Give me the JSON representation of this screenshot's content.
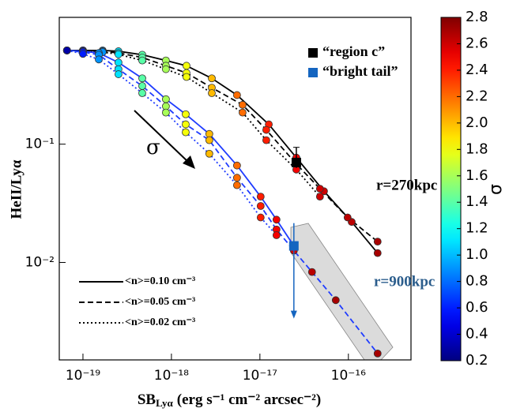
{
  "chart_data": {
    "type": "line",
    "xlog": true,
    "ylog": true,
    "xlabel": {
      "text": "SB",
      "sub": "Lyα",
      "unit": "(erg s⁻¹ cm⁻² arcsec⁻²)"
    },
    "ylabel": "HeII/Lyα",
    "xlim": [
      5.4e-20,
      5.1e-16
    ],
    "ylim": [
      0.0015,
      1.18
    ],
    "xticks": [
      {
        "value": 1e-19,
        "label": "10⁻¹⁹"
      },
      {
        "value": 1e-18,
        "label": "10⁻¹⁸"
      },
      {
        "value": 1e-17,
        "label": "10⁻¹⁷"
      },
      {
        "value": 1e-16,
        "label": "10⁻¹⁶"
      }
    ],
    "yticks": [
      {
        "value": 0.1,
        "label": "10⁻¹"
      },
      {
        "value": 0.01,
        "label": "10⁻²"
      }
    ],
    "annotations": {
      "r_outer": "r=270kpc",
      "r_inner": "r=900kpc",
      "arrow_label": "σ"
    },
    "series": [
      {
        "name": "<n>=0.10 cm⁻³",
        "color": "#000000",
        "dash": "solid",
        "x": [
          6.6e-20,
          1e-19,
          1.67e-19,
          2.52e-19,
          4.68e-19,
          8.66e-19,
          1.48e-18,
          2.86e-18,
          5.51e-18,
          1.26e-17,
          2.58e-17,
          5.3e-17,
          1.09e-16,
          2.14e-16
        ],
        "values": [
          0.62,
          0.62,
          0.62,
          0.61,
          0.57,
          0.51,
          0.46,
          0.36,
          0.26,
          0.147,
          0.077,
          0.04,
          0.022,
          0.012
        ],
        "sigma": [
          0.3,
          0.6,
          0.9,
          1.1,
          1.4,
          1.6,
          1.8,
          2.0,
          2.2,
          2.4,
          2.5,
          2.6,
          2.65,
          2.7
        ]
      },
      {
        "name": "<n>=0.05 cm⁻³",
        "color": "#000000",
        "dash": "dashed",
        "x": [
          6.6e-20,
          1e-19,
          1.67e-19,
          2.52e-19,
          4.68e-19,
          8.66e-19,
          1.48e-18,
          2.86e-18,
          6.37e-18,
          1.18e-17,
          2.58e-17,
          4.77e-17,
          9.8e-17,
          2.14e-16
        ],
        "values": [
          0.62,
          0.62,
          0.61,
          0.59,
          0.54,
          0.46,
          0.4,
          0.3,
          0.215,
          0.132,
          0.068,
          0.042,
          0.024,
          0.015
        ],
        "sigma": [
          0.3,
          0.6,
          0.9,
          1.1,
          1.4,
          1.6,
          1.8,
          2.0,
          2.2,
          2.4,
          2.5,
          2.6,
          2.65,
          2.7
        ]
      },
      {
        "name": "<n>=0.02 cm⁻³",
        "color": "#000000",
        "dash": "dotted",
        "x": [
          6.6e-20,
          1e-19,
          1.67e-19,
          2.52e-19,
          4.68e-19,
          8.66e-19,
          1.48e-18,
          2.86e-18,
          6.37e-18,
          1.18e-17,
          2.58e-17,
          4.77e-17
        ],
        "values": [
          0.62,
          0.62,
          0.6,
          0.575,
          0.51,
          0.43,
          0.37,
          0.27,
          0.185,
          0.108,
          0.061,
          0.036
        ],
        "sigma": [
          0.3,
          0.6,
          0.9,
          1.1,
          1.4,
          1.6,
          1.8,
          2.0,
          2.2,
          2.4,
          2.5,
          2.6
        ]
      },
      {
        "color": "#1f3cff",
        "dash": "solid",
        "x": [
          6.6e-20,
          1e-19,
          1.51e-19,
          2.52e-19,
          4.68e-19,
          8.66e-19,
          1.45e-18,
          2.68e-18,
          5.51e-18,
          1.02e-17,
          1.54e-17,
          2.42e-17
        ],
        "values": [
          0.62,
          0.61,
          0.59,
          0.49,
          0.36,
          0.24,
          0.179,
          0.122,
          0.066,
          0.036,
          0.023,
          0.0138
        ],
        "sigma": [
          0.3,
          0.6,
          0.9,
          1.1,
          1.4,
          1.6,
          1.8,
          2.0,
          2.2,
          2.4,
          2.5,
          2.6
        ]
      },
      {
        "color": "#1f3cff",
        "dash": "dashed",
        "x": [
          6.6e-20,
          1e-19,
          1.51e-19,
          2.52e-19,
          4.68e-19,
          8.66e-19,
          1.45e-18,
          2.68e-18,
          5.51e-18,
          1.02e-17,
          1.54e-17,
          2.42e-17,
          3.88e-17,
          7.2e-17,
          2.14e-16
        ],
        "values": [
          0.62,
          0.6,
          0.57,
          0.43,
          0.31,
          0.209,
          0.147,
          0.108,
          0.052,
          0.03,
          0.019,
          0.0126,
          0.0083,
          0.0048,
          0.0017
        ],
        "sigma": [
          0.3,
          0.6,
          0.9,
          1.1,
          1.4,
          1.6,
          1.8,
          2.0,
          2.2,
          2.4,
          2.5,
          2.6,
          2.65,
          2.7,
          2.7
        ]
      },
      {
        "color": "#1f3cff",
        "dash": "dotted",
        "x": [
          6.6e-20,
          1e-19,
          1.51e-19,
          2.52e-19,
          4.68e-19,
          8.66e-19,
          1.45e-18,
          2.68e-18,
          5.51e-18,
          1.02e-17,
          1.54e-17
        ],
        "values": [
          0.62,
          0.58,
          0.52,
          0.39,
          0.27,
          0.185,
          0.126,
          0.083,
          0.045,
          0.024,
          0.017
        ],
        "sigma": [
          0.3,
          0.6,
          0.9,
          1.1,
          1.4,
          1.6,
          1.8,
          2.0,
          2.2,
          2.4,
          2.5
        ]
      }
    ],
    "observations": [
      {
        "name": "“region c”",
        "color": "#000000",
        "x": 2.58e-17,
        "value": 0.07,
        "err": [
          0.007,
          0.024
        ],
        "limit_arrow": false
      },
      {
        "name": "“bright tail”",
        "color": "#1565c0",
        "x": 2.42e-17,
        "value": 0.0138,
        "err": [
          0.0072,
          0.0077
        ],
        "limit_arrow": true
      }
    ],
    "colorbar": {
      "label": "σ",
      "colormap": "jet",
      "clim": [
        0.2,
        2.8
      ],
      "ticks": [
        0.2,
        0.4,
        0.6,
        0.8,
        {
          "value": 1.0,
          "label": "1.0"
        },
        1.2,
        1.4,
        1.6,
        1.8,
        {
          "value": 2.0,
          "label": "2.0"
        },
        2.2,
        2.4,
        2.6,
        2.8
      ]
    }
  }
}
